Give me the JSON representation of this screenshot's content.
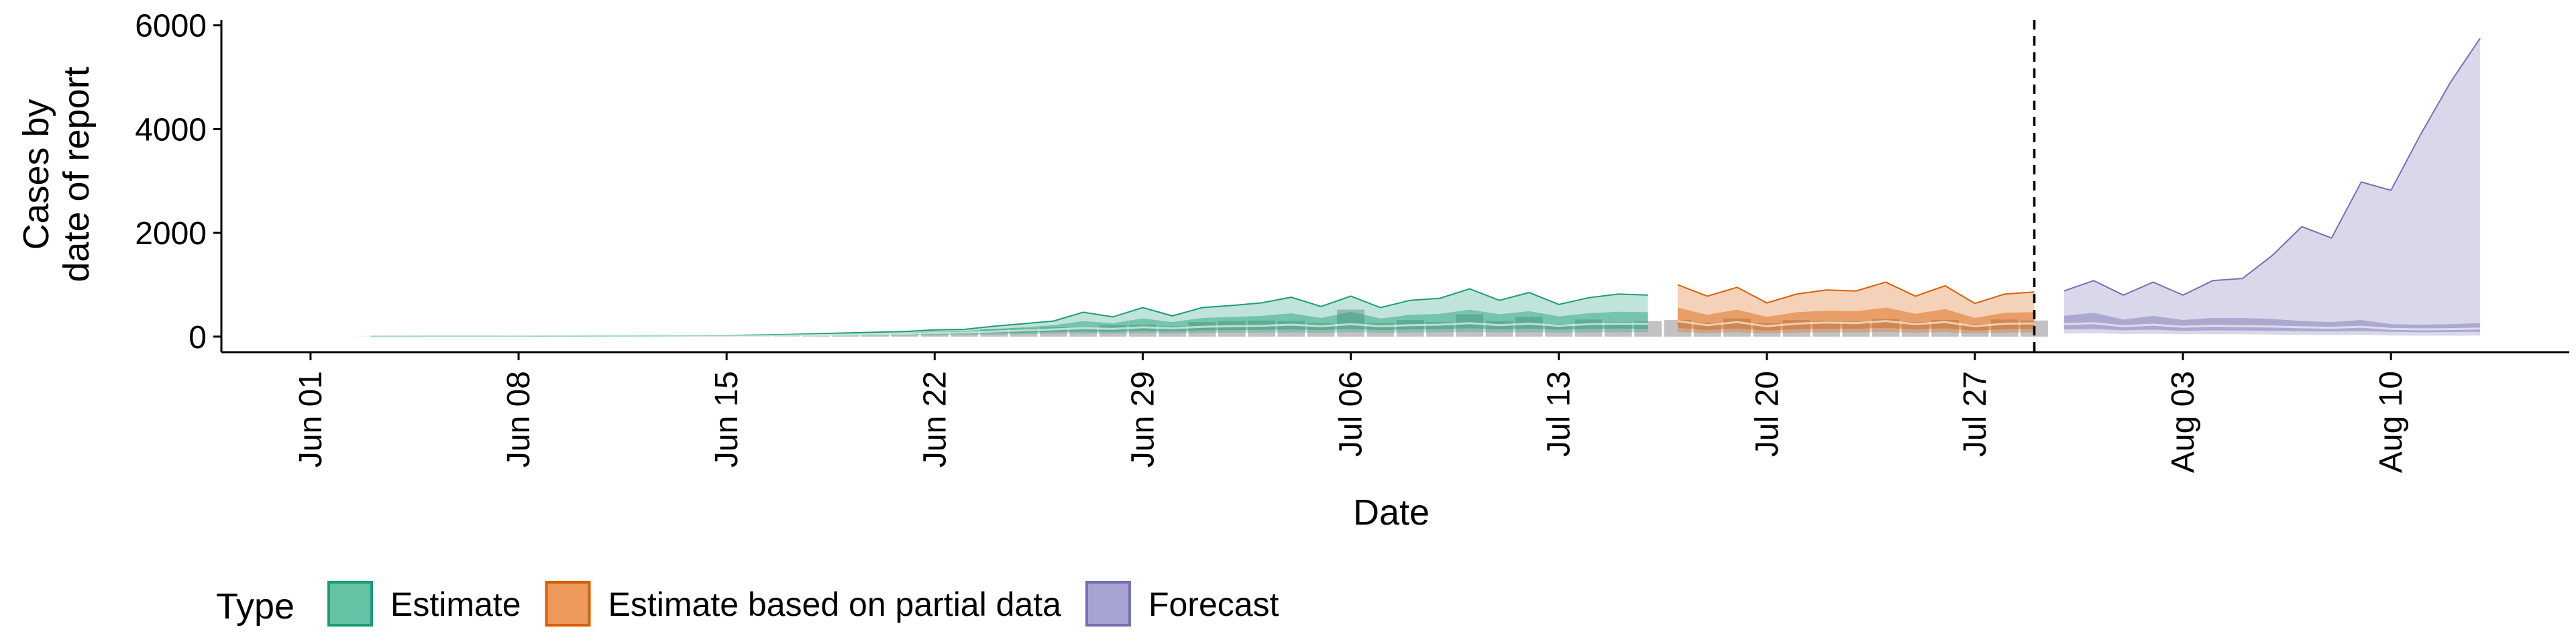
{
  "chart_data": {
    "type": "area",
    "xlabel": "Date",
    "ylabel_lines": [
      "Cases by",
      "date of report"
    ],
    "yticks": [
      0,
      2000,
      4000,
      6000
    ],
    "ylim": [
      -300,
      6100
    ],
    "xlim": [
      "2020-05-29",
      "2020-08-16"
    ],
    "xticks": [
      "2020-06-01",
      "2020-06-08",
      "2020-06-15",
      "2020-06-22",
      "2020-06-29",
      "2020-07-06",
      "2020-07-13",
      "2020-07-20",
      "2020-07-27",
      "2020-08-03",
      "2020-08-10"
    ],
    "xtick_labels": [
      "Jun 01",
      "Jun 08",
      "Jun 15",
      "Jun 22",
      "Jun 29",
      "Jul 06",
      "Jul 13",
      "Jul 20",
      "Jul 27",
      "Aug 03",
      "Aug 10"
    ],
    "forecast_cutoff": "2020-07-29",
    "legend": {
      "title": "Type",
      "position": "bottom-left",
      "items": [
        {
          "label": "Estimate",
          "fill": "#66c2a5",
          "stroke": "#1b9e77"
        },
        {
          "label": "Estimate based on partial data",
          "fill": "#eb9a5c",
          "stroke": "#d95f02"
        },
        {
          "label": "Forecast",
          "fill": "#a7a3d3",
          "stroke": "#7570b3"
        }
      ]
    },
    "series": [
      {
        "name": "Estimate",
        "color": "#1b9e77",
        "x": [
          "2020-06-03",
          "2020-06-04",
          "2020-06-05",
          "2020-06-06",
          "2020-06-07",
          "2020-06-08",
          "2020-06-09",
          "2020-06-10",
          "2020-06-11",
          "2020-06-12",
          "2020-06-13",
          "2020-06-14",
          "2020-06-15",
          "2020-06-16",
          "2020-06-17",
          "2020-06-18",
          "2020-06-19",
          "2020-06-20",
          "2020-06-21",
          "2020-06-22",
          "2020-06-23",
          "2020-06-24",
          "2020-06-25",
          "2020-06-26",
          "2020-06-27",
          "2020-06-28",
          "2020-06-29",
          "2020-06-30",
          "2020-07-01",
          "2020-07-02",
          "2020-07-03",
          "2020-07-04",
          "2020-07-05",
          "2020-07-06",
          "2020-07-07",
          "2020-07-08",
          "2020-07-09",
          "2020-07-10",
          "2020-07-11",
          "2020-07-12",
          "2020-07-13",
          "2020-07-14",
          "2020-07-15",
          "2020-07-16"
        ],
        "upper": [
          5,
          5,
          6,
          6,
          7,
          8,
          9,
          10,
          11,
          13,
          15,
          18,
          22,
          30,
          40,
          55,
          70,
          85,
          100,
          130,
          140,
          200,
          250,
          300,
          470,
          380,
          560,
          400,
          560,
          600,
          650,
          760,
          580,
          780,
          560,
          700,
          740,
          920,
          700,
          850,
          620,
          750,
          820,
          800
        ],
        "upper50": [
          3,
          3,
          4,
          4,
          5,
          6,
          7,
          8,
          9,
          10,
          12,
          14,
          18,
          25,
          32,
          42,
          55,
          66,
          80,
          100,
          110,
          150,
          180,
          220,
          300,
          260,
          350,
          280,
          360,
          380,
          400,
          450,
          360,
          480,
          350,
          420,
          440,
          520,
          430,
          490,
          390,
          450,
          480,
          470
        ],
        "median": [
          2,
          2,
          3,
          3,
          3,
          4,
          5,
          5,
          6,
          7,
          8,
          10,
          12,
          16,
          22,
          28,
          36,
          45,
          55,
          70,
          80,
          100,
          120,
          140,
          160,
          150,
          180,
          160,
          190,
          200,
          210,
          230,
          200,
          240,
          200,
          220,
          230,
          260,
          220,
          250,
          210,
          240,
          250,
          245
        ],
        "lower50": [
          1,
          1,
          2,
          2,
          2,
          3,
          3,
          4,
          4,
          5,
          6,
          7,
          8,
          11,
          15,
          20,
          25,
          30,
          36,
          45,
          55,
          65,
          75,
          90,
          100,
          90,
          110,
          100,
          120,
          125,
          130,
          140,
          125,
          150,
          125,
          140,
          145,
          160,
          140,
          155,
          135,
          150,
          155,
          150
        ],
        "lower": [
          0,
          0,
          1,
          1,
          1,
          1,
          2,
          2,
          2,
          3,
          3,
          4,
          5,
          7,
          9,
          12,
          15,
          18,
          22,
          28,
          33,
          40,
          45,
          55,
          60,
          55,
          65,
          60,
          70,
          75,
          78,
          82,
          75,
          85,
          75,
          80,
          82,
          88,
          80,
          85,
          78,
          82,
          85,
          84
        ]
      },
      {
        "name": "Estimate based on partial data",
        "color": "#d95f02",
        "x": [
          "2020-07-17",
          "2020-07-18",
          "2020-07-19",
          "2020-07-20",
          "2020-07-21",
          "2020-07-22",
          "2020-07-23",
          "2020-07-24",
          "2020-07-25",
          "2020-07-26",
          "2020-07-27",
          "2020-07-28",
          "2020-07-29"
        ],
        "upper": [
          1000,
          780,
          950,
          650,
          820,
          900,
          880,
          1050,
          780,
          980,
          640,
          820,
          860
        ],
        "upper50": [
          560,
          420,
          520,
          380,
          470,
          500,
          490,
          560,
          440,
          530,
          360,
          460,
          470
        ],
        "median": [
          300,
          220,
          280,
          200,
          250,
          270,
          260,
          300,
          240,
          280,
          200,
          250,
          255
        ],
        "lower50": [
          170,
          125,
          160,
          115,
          145,
          155,
          150,
          170,
          140,
          160,
          115,
          145,
          148
        ],
        "lower": [
          90,
          70,
          85,
          60,
          78,
          82,
          80,
          90,
          75,
          86,
          62,
          78,
          80
        ]
      },
      {
        "name": "Forecast",
        "color": "#7570b3",
        "x": [
          "2020-07-30",
          "2020-07-31",
          "2020-08-01",
          "2020-08-02",
          "2020-08-03",
          "2020-08-04",
          "2020-08-05",
          "2020-08-06",
          "2020-08-07",
          "2020-08-08",
          "2020-08-09",
          "2020-08-10",
          "2020-08-11",
          "2020-08-12",
          "2020-08-13"
        ],
        "upper": [
          880,
          1080,
          800,
          1050,
          800,
          1080,
          1120,
          1560,
          2120,
          1900,
          2980,
          2820,
          3900,
          4900,
          5750
        ],
        "upper50": [
          400,
          460,
          330,
          400,
          320,
          360,
          360,
          340,
          300,
          280,
          320,
          240,
          230,
          240,
          260
        ],
        "median": [
          240,
          260,
          200,
          230,
          190,
          210,
          200,
          195,
          180,
          170,
          190,
          150,
          140,
          145,
          155
        ],
        "lower50": [
          140,
          150,
          120,
          135,
          110,
          120,
          118,
          112,
          105,
          100,
          108,
          90,
          85,
          88,
          92
        ],
        "lower": [
          60,
          65,
          50,
          55,
          45,
          48,
          45,
          40,
          35,
          30,
          32,
          22,
          18,
          18,
          20
        ]
      }
    ],
    "observed": {
      "x": [
        "2020-06-03",
        "2020-06-04",
        "2020-06-05",
        "2020-06-06",
        "2020-06-07",
        "2020-06-08",
        "2020-06-09",
        "2020-06-10",
        "2020-06-11",
        "2020-06-12",
        "2020-06-13",
        "2020-06-14",
        "2020-06-15",
        "2020-06-16",
        "2020-06-17",
        "2020-06-18",
        "2020-06-19",
        "2020-06-20",
        "2020-06-21",
        "2020-06-22",
        "2020-06-23",
        "2020-06-24",
        "2020-06-25",
        "2020-06-26",
        "2020-06-27",
        "2020-06-28",
        "2020-06-29",
        "2020-06-30",
        "2020-07-01",
        "2020-07-02",
        "2020-07-03",
        "2020-07-04",
        "2020-07-05",
        "2020-07-06",
        "2020-07-07",
        "2020-07-08",
        "2020-07-09",
        "2020-07-10",
        "2020-07-11",
        "2020-07-12",
        "2020-07-13",
        "2020-07-14",
        "2020-07-15",
        "2020-07-16",
        "2020-07-17",
        "2020-07-18",
        "2020-07-19",
        "2020-07-20",
        "2020-07-21",
        "2020-07-22",
        "2020-07-23",
        "2020-07-24",
        "2020-07-25",
        "2020-07-26",
        "2020-07-27",
        "2020-07-28",
        "2020-07-29"
      ],
      "values": [
        2,
        2,
        3,
        3,
        3,
        4,
        5,
        5,
        6,
        7,
        8,
        10,
        12,
        18,
        24,
        30,
        38,
        46,
        60,
        90,
        110,
        140,
        160,
        180,
        170,
        220,
        230,
        200,
        280,
        300,
        310,
        300,
        260,
        520,
        260,
        320,
        280,
        430,
        300,
        380,
        240,
        330,
        280,
        300,
        320,
        270,
        350,
        260,
        320,
        300,
        290,
        340,
        280,
        320,
        240,
        330,
        310
      ]
    }
  }
}
